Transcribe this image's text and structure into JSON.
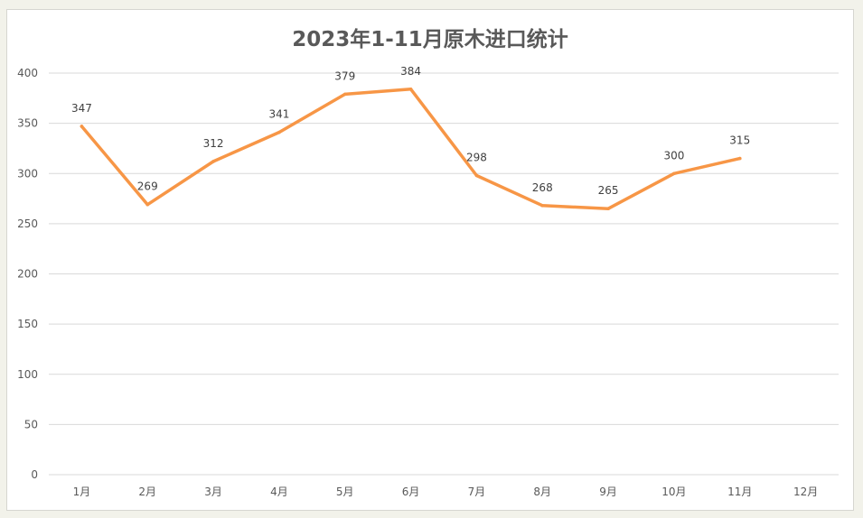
{
  "chart_data": {
    "type": "line",
    "title": "2023年1-11月原木进口统计",
    "xlabel": "",
    "ylabel": "",
    "categories": [
      "1月",
      "2月",
      "3月",
      "4月",
      "5月",
      "6月",
      "7月",
      "8月",
      "9月",
      "10月",
      "11月",
      "12月"
    ],
    "series": [
      {
        "values": [
          347,
          269,
          312,
          341,
          379,
          384,
          298,
          268,
          265,
          300,
          315,
          null
        ],
        "color": "#f79646"
      }
    ],
    "data_labels": [
      "347",
      "269",
      "312",
      "341",
      "379",
      "384",
      "298",
      "268",
      "265",
      "300",
      "315"
    ],
    "ylim": [
      0,
      400
    ],
    "yticks": [
      "0",
      "50",
      "100",
      "150",
      "200",
      "250",
      "300",
      "350",
      "400"
    ],
    "grid": true,
    "legend": "none"
  }
}
